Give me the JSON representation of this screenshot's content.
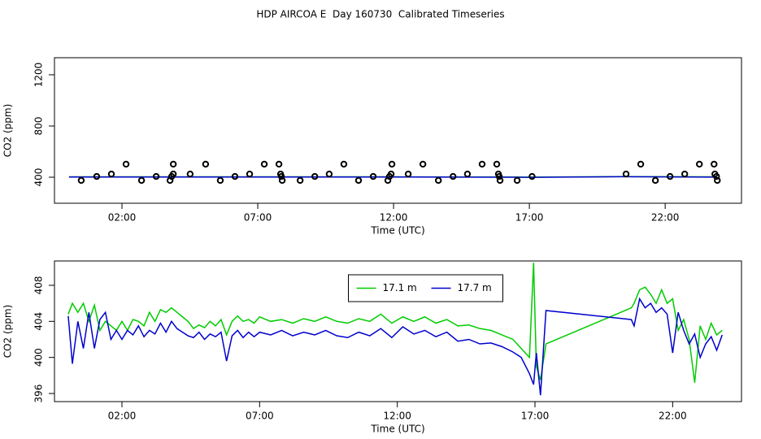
{
  "title": "HDP AIRCOA E  Day 160730  Calibrated Timeseries",
  "chart_data": [
    {
      "type": "scatter",
      "xlabel": "Time (UTC)",
      "ylabel": "CO2 (ppm)",
      "xlim": [
        -0.485,
        24.81
      ],
      "ylim": [
        197,
        1333
      ],
      "xticks": [
        {
          "value": 2,
          "label": "02:00"
        },
        {
          "value": 7,
          "label": "07:00"
        },
        {
          "value": 12,
          "label": "12:00"
        },
        {
          "value": 17,
          "label": "17:00"
        },
        {
          "value": 22,
          "label": "22:00"
        }
      ],
      "yticks": [
        400,
        800,
        1200
      ],
      "color": "#000000",
      "x": [
        0.5,
        1.07,
        1.61,
        2.15,
        2.72,
        3.26,
        3.77,
        3.83,
        3.89,
        3.89,
        4.51,
        5.08,
        5.62,
        6.16,
        6.7,
        7.24,
        7.78,
        7.84,
        7.87,
        7.9,
        8.56,
        9.1,
        9.63,
        10.17,
        10.71,
        11.25,
        11.79,
        11.85,
        11.91,
        11.94,
        12.54,
        13.08,
        13.65,
        14.19,
        14.72,
        15.26,
        15.8,
        15.86,
        15.89,
        15.92,
        16.55,
        17.1,
        20.56,
        21.1,
        21.64,
        22.18,
        22.72,
        23.26,
        23.8,
        23.83,
        23.89,
        23.92
      ],
      "values": [
        375,
        406,
        425,
        502,
        375,
        406,
        375,
        406,
        425,
        502,
        425,
        502,
        375,
        406,
        425,
        502,
        502,
        425,
        406,
        375,
        375,
        406,
        425,
        502,
        375,
        406,
        375,
        406,
        425,
        502,
        425,
        502,
        375,
        406,
        425,
        502,
        502,
        425,
        406,
        375,
        375,
        406,
        425,
        502,
        375,
        406,
        425,
        502,
        502,
        425,
        406,
        375
      ],
      "series": [
        {
          "color": "#00cc00",
          "x": [
            0.05,
            4,
            8,
            12,
            16.5,
            17,
            20.5,
            23.9
          ],
          "values": [
            403,
            403,
            403,
            403,
            402,
            401,
            405,
            403
          ]
        },
        {
          "color": "#0000cc",
          "x": [
            0.05,
            4,
            8,
            12,
            16.5,
            17,
            20.5,
            23.9
          ],
          "values": [
            402,
            402,
            402,
            402,
            400,
            399,
            404,
            401
          ]
        }
      ]
    },
    {
      "type": "line",
      "xlabel": "Time (UTC)",
      "ylabel": "CO2 (ppm)",
      "xlim": [
        -0.45,
        24.5
      ],
      "ylim": [
        395.1,
        410.7
      ],
      "xticks": [
        {
          "value": 2,
          "label": "02:00"
        },
        {
          "value": 7,
          "label": "07:00"
        },
        {
          "value": 12,
          "label": "12:00"
        },
        {
          "value": 17,
          "label": "17:00"
        },
        {
          "value": 22,
          "label": "22:00"
        }
      ],
      "yticks": [
        396,
        400,
        404,
        408
      ],
      "legend": "top",
      "x": [
        0.05,
        0.2,
        0.4,
        0.6,
        0.8,
        1.0,
        1.2,
        1.4,
        1.6,
        1.8,
        2.0,
        2.2,
        2.4,
        2.6,
        2.8,
        3.0,
        3.2,
        3.4,
        3.6,
        3.8,
        4.0,
        4.2,
        4.4,
        4.6,
        4.8,
        5.0,
        5.2,
        5.4,
        5.6,
        5.8,
        6.0,
        6.2,
        6.4,
        6.6,
        6.8,
        7.0,
        7.4,
        7.8,
        8.2,
        8.6,
        9.0,
        9.4,
        9.8,
        10.2,
        10.6,
        11.0,
        11.4,
        11.8,
        12.2,
        12.6,
        13.0,
        13.4,
        13.8,
        14.2,
        14.6,
        15.0,
        15.4,
        15.8,
        16.2,
        16.5,
        16.8,
        16.95,
        17.05,
        17.2,
        17.4,
        20.5,
        20.6,
        20.8,
        21.0,
        21.2,
        21.4,
        21.6,
        21.8,
        22.0,
        22.2,
        22.4,
        22.6,
        22.8,
        23.0,
        23.2,
        23.4,
        23.6,
        23.8
      ],
      "series": [
        {
          "name": "17.1 m",
          "color": "#00cc00",
          "values": [
            404.8,
            406,
            405,
            406,
            404,
            405.8,
            403,
            404,
            403.5,
            403,
            404,
            403,
            404.2,
            404,
            403.5,
            405,
            404,
            405.3,
            405,
            405.5,
            405,
            404.5,
            404,
            403.2,
            403.6,
            403.3,
            404,
            403.5,
            404.2,
            402.5,
            404,
            404.6,
            404,
            404.2,
            403.8,
            404.5,
            404,
            404.2,
            403.8,
            404.3,
            404,
            404.5,
            404,
            403.8,
            404.3,
            404,
            404.8,
            403.8,
            404.5,
            404,
            404.5,
            403.8,
            404.2,
            403.5,
            403.6,
            403.2,
            403,
            402.5,
            402,
            401,
            400,
            410.5,
            399,
            397.5,
            401.5,
            405.5,
            406,
            407.5,
            407.8,
            407,
            406,
            407.5,
            406,
            406.5,
            403,
            404.2,
            402,
            397.2,
            403.5,
            402,
            403.8,
            402.5,
            403
          ]
        },
        {
          "name": "17.7 m",
          "color": "#0000cc",
          "values": [
            404.6,
            399.3,
            404,
            401,
            405,
            401,
            404.2,
            405,
            402,
            403,
            402,
            403,
            402.5,
            403.5,
            402.3,
            403,
            402.6,
            403.8,
            402.8,
            404,
            403.2,
            402.8,
            402.4,
            402.2,
            402.8,
            402,
            402.6,
            402.3,
            402.8,
            399.6,
            402.4,
            403,
            402.2,
            402.8,
            402.3,
            402.8,
            402.5,
            403,
            402.4,
            402.8,
            402.5,
            403,
            402.4,
            402.2,
            402.8,
            402.4,
            403.2,
            402.2,
            403.4,
            402.6,
            403,
            402.3,
            402.8,
            401.8,
            402,
            401.5,
            401.6,
            401.2,
            400.6,
            400,
            398.2,
            397,
            400.5,
            395.8,
            405.2,
            404.2,
            403.5,
            406.5,
            405.5,
            406,
            405,
            405.5,
            404.8,
            400.5,
            405,
            403,
            401.5,
            402.6,
            400,
            401.5,
            402.3,
            400.8,
            402.5
          ]
        }
      ]
    }
  ]
}
